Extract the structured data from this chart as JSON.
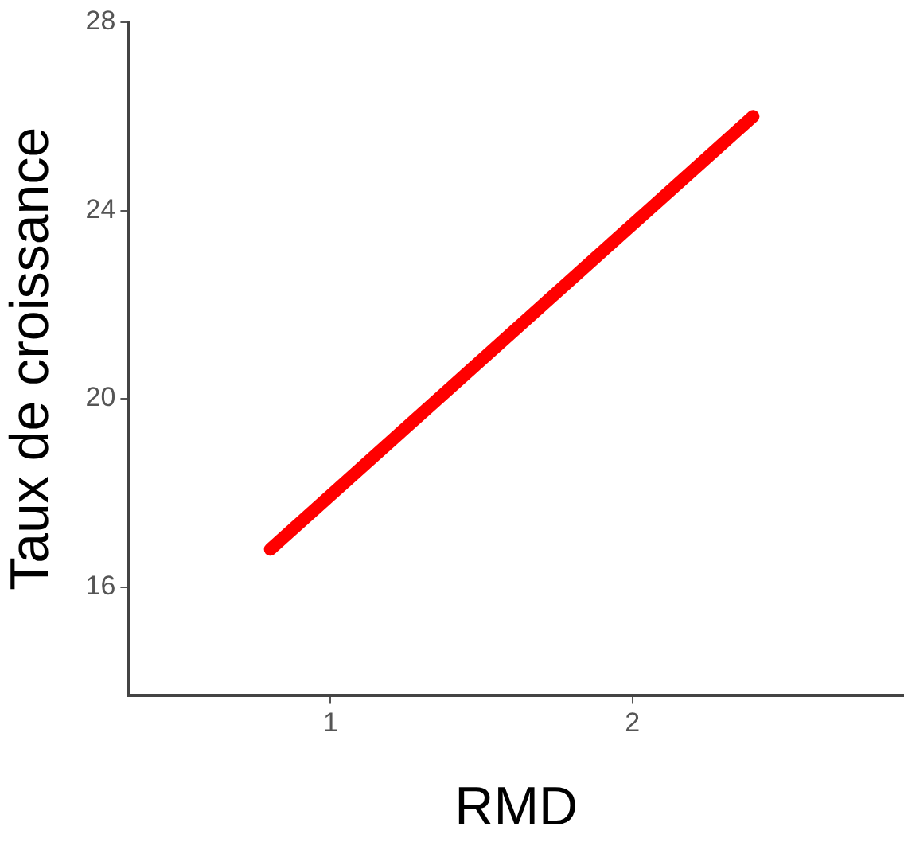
{
  "chart_data": {
    "type": "line",
    "xlabel": "RMD",
    "ylabel": "Taux de croissance",
    "series": [
      {
        "color": "#ff0000",
        "x": [
          0.8,
          2.4
        ],
        "values": [
          16.8,
          26.0
        ]
      }
    ],
    "xlim": [
      0.33,
      2.9
    ],
    "xticks": [
      1,
      2
    ],
    "ylim": [
      13.7,
      28
    ],
    "yticks": [
      16,
      20,
      24,
      28
    ],
    "grid": false,
    "legend": false,
    "marker": "none",
    "line_style": "solid"
  }
}
